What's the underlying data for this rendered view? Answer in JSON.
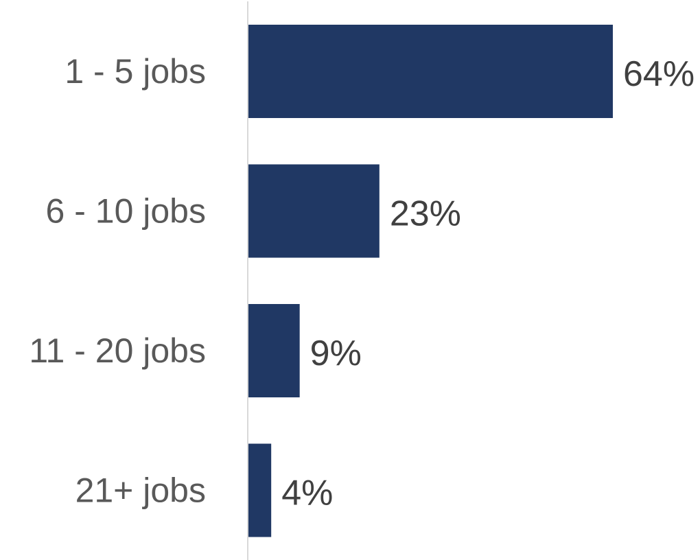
{
  "chart_data": {
    "type": "bar",
    "orientation": "horizontal",
    "categories": [
      "1 - 5 jobs",
      "6 - 10 jobs",
      "11 - 20 jobs",
      "21+ jobs"
    ],
    "values": [
      64,
      23,
      9,
      4
    ],
    "value_labels": [
      "64%",
      "23%",
      "9%",
      "4%"
    ],
    "unit": "%",
    "title": "",
    "xlabel": "",
    "ylabel": "",
    "xlim": [
      0,
      64
    ],
    "grid": false,
    "legend": "none",
    "bar_color": "#203864",
    "axis_color": "#d9d9d9"
  }
}
